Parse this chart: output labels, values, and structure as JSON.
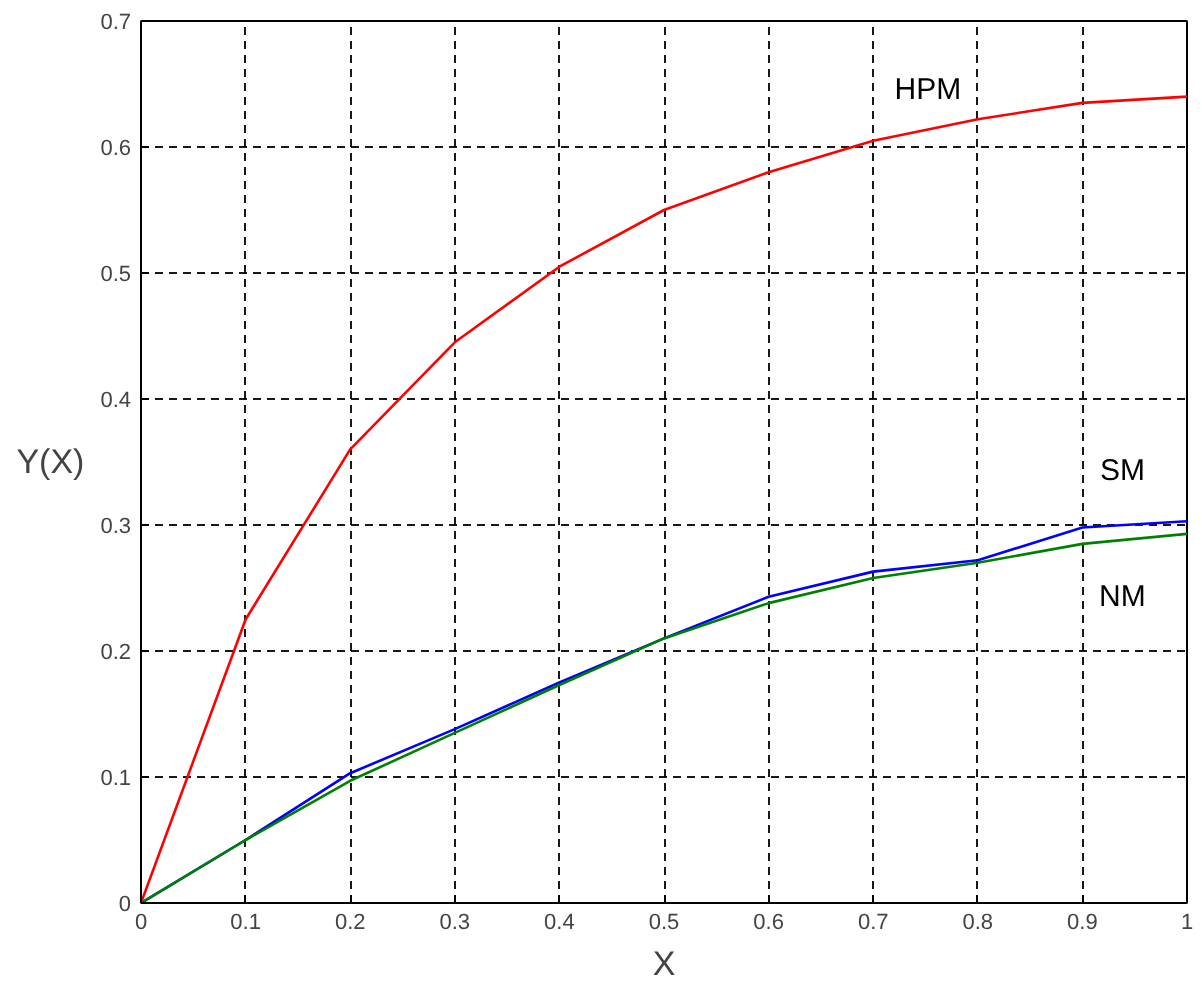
{
  "chart_data": {
    "type": "line",
    "xlabel": "X",
    "ylabel": "Y(X)",
    "x": [
      0,
      0.1,
      0.2,
      0.3,
      0.4,
      0.5,
      0.6,
      0.7,
      0.8,
      0.9,
      1
    ],
    "series": [
      {
        "name": "HPM",
        "color": "#ff0000",
        "values": [
          0,
          0.225,
          0.36,
          0.445,
          0.505,
          0.55,
          0.58,
          0.605,
          0.622,
          0.635,
          0.64
        ]
      },
      {
        "name": "SM",
        "color": "#0000ff",
        "values": [
          0,
          0.05,
          0.103,
          0.138,
          0.175,
          0.21,
          0.243,
          0.263,
          0.272,
          0.298,
          0.303
        ]
      },
      {
        "name": "NM",
        "color": "#008000",
        "values": [
          0,
          0.05,
          0.097,
          0.135,
          0.173,
          0.21,
          0.238,
          0.258,
          0.27,
          0.285,
          0.293
        ]
      }
    ],
    "xlim": [
      0,
      1
    ],
    "ylim": [
      0,
      0.7
    ],
    "xticks": [
      0,
      0.1,
      0.2,
      0.3,
      0.4,
      0.5,
      0.6,
      0.7,
      0.8,
      0.9,
      1
    ],
    "yticks": [
      0,
      0.1,
      0.2,
      0.3,
      0.4,
      0.5,
      0.6,
      0.7
    ],
    "grid": true,
    "line_style": "solid",
    "marker": "none"
  }
}
